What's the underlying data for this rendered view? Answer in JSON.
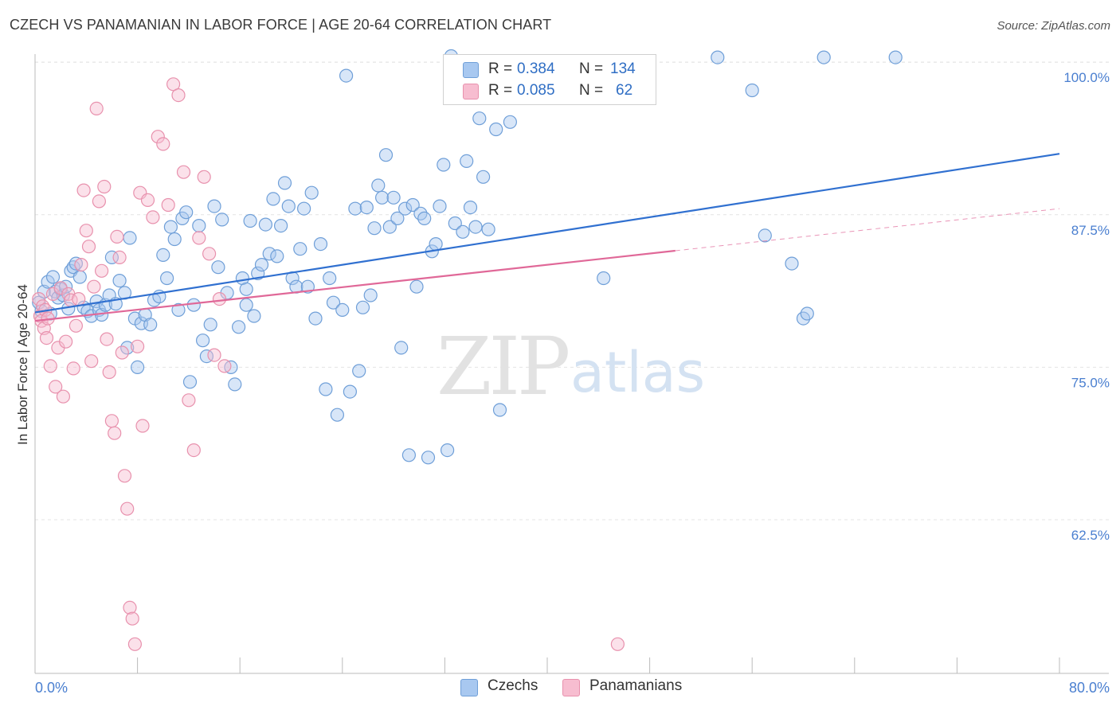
{
  "title": "CZECH VS PANAMANIAN IN LABOR FORCE | AGE 20-64 CORRELATION CHART",
  "source": "Source: ZipAtlas.com",
  "watermark": {
    "zip": "ZIP",
    "atlas": "atlas"
  },
  "legend": {
    "items": [
      {
        "r_label": "R =",
        "r_value": "0.384",
        "n_label": "N =",
        "n_value": "134",
        "color": "#a8c8f0",
        "stroke": "#6f9fd8"
      },
      {
        "r_label": "R =",
        "r_value": "0.085",
        "n_label": "N =",
        "n_value": "62",
        "color": "#f7bdd0",
        "stroke": "#e891ad"
      }
    ]
  },
  "bottom_legend": [
    {
      "label": "Czechs",
      "color": "#a8c8f0",
      "stroke": "#6f9fd8"
    },
    {
      "label": "Panamanians",
      "color": "#f7bdd0",
      "stroke": "#e891ad"
    }
  ],
  "chart_data": {
    "type": "scatter",
    "title": "CZECH VS PANAMANIAN IN LABOR FORCE | AGE 20-64 CORRELATION CHART",
    "xlabel": "",
    "ylabel": "In Labor Force | Age 20-64",
    "xlim": [
      0,
      80
    ],
    "ylim": [
      50.5,
      101
    ],
    "x_tick_labels": [
      "0.0%",
      "80.0%"
    ],
    "y_ticks": [
      62.5,
      75.0,
      87.5,
      100.0
    ],
    "y_tick_labels": [
      "62.5%",
      "75.0%",
      "87.5%",
      "100.0%"
    ],
    "grid": true,
    "colors": {
      "czechs": "#3070d0",
      "panamanians": "#e06898",
      "tick_label": "#4a7fd0"
    },
    "series": [
      {
        "name": "Czechs",
        "points": [
          [
            0.3,
            80.3
          ],
          [
            0.5,
            79.6
          ],
          [
            0.7,
            81.2
          ],
          [
            1.0,
            82.0
          ],
          [
            1.2,
            79.4
          ],
          [
            1.4,
            82.4
          ],
          [
            1.6,
            81.2
          ],
          [
            1.8,
            80.7
          ],
          [
            2.0,
            81.4
          ],
          [
            2.2,
            80.9
          ],
          [
            2.4,
            81.6
          ],
          [
            2.6,
            79.8
          ],
          [
            2.8,
            82.9
          ],
          [
            3.0,
            83.2
          ],
          [
            3.2,
            83.5
          ],
          [
            3.5,
            82.4
          ],
          [
            3.8,
            79.9
          ],
          [
            4.1,
            79.6
          ],
          [
            4.4,
            79.2
          ],
          [
            4.8,
            80.4
          ],
          [
            5.0,
            79.7
          ],
          [
            5.2,
            79.3
          ],
          [
            5.5,
            80.1
          ],
          [
            5.8,
            80.9
          ],
          [
            6.0,
            84.0
          ],
          [
            6.3,
            80.2
          ],
          [
            6.6,
            82.1
          ],
          [
            7.0,
            81.1
          ],
          [
            7.2,
            76.6
          ],
          [
            7.4,
            85.6
          ],
          [
            7.8,
            79.0
          ],
          [
            8.0,
            75.0
          ],
          [
            8.3,
            78.6
          ],
          [
            8.6,
            79.3
          ],
          [
            9.0,
            78.5
          ],
          [
            9.3,
            80.5
          ],
          [
            9.7,
            80.8
          ],
          [
            10.0,
            84.2
          ],
          [
            10.3,
            82.3
          ],
          [
            10.6,
            86.5
          ],
          [
            10.9,
            85.5
          ],
          [
            11.2,
            79.7
          ],
          [
            11.5,
            87.2
          ],
          [
            11.8,
            87.7
          ],
          [
            12.1,
            73.8
          ],
          [
            12.4,
            80.1
          ],
          [
            12.8,
            86.6
          ],
          [
            13.1,
            77.2
          ],
          [
            13.4,
            75.9
          ],
          [
            13.7,
            78.5
          ],
          [
            14.0,
            88.2
          ],
          [
            14.3,
            83.2
          ],
          [
            14.6,
            87.1
          ],
          [
            15.0,
            81.1
          ],
          [
            15.3,
            75.0
          ],
          [
            15.6,
            73.6
          ],
          [
            15.9,
            78.3
          ],
          [
            16.2,
            82.3
          ],
          [
            16.5,
            80.1
          ],
          [
            16.8,
            87.0
          ],
          [
            17.1,
            79.2
          ],
          [
            17.4,
            82.7
          ],
          [
            17.7,
            83.4
          ],
          [
            18.0,
            86.7
          ],
          [
            18.3,
            84.3
          ],
          [
            18.6,
            88.8
          ],
          [
            18.9,
            84.1
          ],
          [
            19.2,
            86.6
          ],
          [
            19.5,
            90.1
          ],
          [
            19.8,
            88.2
          ],
          [
            20.1,
            82.3
          ],
          [
            20.4,
            81.6
          ],
          [
            20.7,
            84.7
          ],
          [
            21.0,
            88.0
          ],
          [
            21.3,
            81.6
          ],
          [
            21.6,
            89.3
          ],
          [
            21.9,
            79.0
          ],
          [
            22.3,
            85.1
          ],
          [
            22.7,
            73.2
          ],
          [
            23.0,
            82.3
          ],
          [
            23.3,
            80.3
          ],
          [
            23.6,
            71.1
          ],
          [
            24.0,
            79.7
          ],
          [
            24.3,
            98.9
          ],
          [
            24.6,
            73.0
          ],
          [
            25.0,
            88.0
          ],
          [
            25.3,
            74.7
          ],
          [
            25.6,
            79.9
          ],
          [
            25.9,
            88.1
          ],
          [
            26.2,
            80.9
          ],
          [
            26.5,
            86.4
          ],
          [
            26.8,
            89.9
          ],
          [
            27.1,
            88.9
          ],
          [
            27.4,
            92.4
          ],
          [
            27.7,
            86.5
          ],
          [
            28.0,
            88.9
          ],
          [
            28.3,
            87.2
          ],
          [
            28.6,
            76.6
          ],
          [
            28.9,
            88.0
          ],
          [
            29.2,
            67.8
          ],
          [
            29.5,
            88.3
          ],
          [
            29.8,
            81.6
          ],
          [
            30.1,
            87.6
          ],
          [
            30.4,
            87.2
          ],
          [
            30.7,
            67.6
          ],
          [
            31.0,
            84.5
          ],
          [
            31.3,
            85.1
          ],
          [
            31.6,
            88.2
          ],
          [
            31.9,
            91.6
          ],
          [
            32.2,
            68.2
          ],
          [
            32.5,
            100.5
          ],
          [
            32.8,
            86.8
          ],
          [
            33.1,
            98.5
          ],
          [
            33.4,
            86.1
          ],
          [
            33.7,
            91.9
          ],
          [
            34.0,
            88.1
          ],
          [
            34.4,
            86.5
          ],
          [
            34.7,
            95.4
          ],
          [
            35.0,
            90.6
          ],
          [
            35.4,
            86.3
          ],
          [
            35.7,
            97.5
          ],
          [
            36.0,
            94.5
          ],
          [
            36.3,
            71.5
          ],
          [
            37.1,
            95.1
          ],
          [
            44.4,
            82.3
          ],
          [
            53.3,
            100.4
          ],
          [
            56.0,
            97.7
          ],
          [
            57.0,
            85.8
          ],
          [
            59.1,
            83.5
          ],
          [
            60.0,
            79.0
          ],
          [
            60.3,
            79.4
          ],
          [
            61.6,
            100.4
          ],
          [
            67.2,
            100.4
          ],
          [
            16.5,
            81.4
          ]
        ]
      },
      {
        "name": "Panamanians",
        "points": [
          [
            0.3,
            80.6
          ],
          [
            0.4,
            79.2
          ],
          [
            0.5,
            78.8
          ],
          [
            0.6,
            80.0
          ],
          [
            0.7,
            78.2
          ],
          [
            0.8,
            79.7
          ],
          [
            0.9,
            77.4
          ],
          [
            1.0,
            79.0
          ],
          [
            1.2,
            75.1
          ],
          [
            1.4,
            81.0
          ],
          [
            1.6,
            73.4
          ],
          [
            1.8,
            76.6
          ],
          [
            2.0,
            81.5
          ],
          [
            2.2,
            72.6
          ],
          [
            2.4,
            77.1
          ],
          [
            2.6,
            81.0
          ],
          [
            2.8,
            80.5
          ],
          [
            3.0,
            74.9
          ],
          [
            3.2,
            78.4
          ],
          [
            3.4,
            80.6
          ],
          [
            3.6,
            83.4
          ],
          [
            3.8,
            89.5
          ],
          [
            4.0,
            86.2
          ],
          [
            4.2,
            84.9
          ],
          [
            4.4,
            75.5
          ],
          [
            4.6,
            81.6
          ],
          [
            4.8,
            96.2
          ],
          [
            5.0,
            88.6
          ],
          [
            5.2,
            82.9
          ],
          [
            5.4,
            89.8
          ],
          [
            5.6,
            77.3
          ],
          [
            5.8,
            74.6
          ],
          [
            6.0,
            70.6
          ],
          [
            6.2,
            69.6
          ],
          [
            6.4,
            85.7
          ],
          [
            6.6,
            84.0
          ],
          [
            6.8,
            76.2
          ],
          [
            7.0,
            66.1
          ],
          [
            7.2,
            63.4
          ],
          [
            7.4,
            55.3
          ],
          [
            7.6,
            54.4
          ],
          [
            7.8,
            52.3
          ],
          [
            8.0,
            76.7
          ],
          [
            8.2,
            89.3
          ],
          [
            8.4,
            70.2
          ],
          [
            8.8,
            88.7
          ],
          [
            9.2,
            87.3
          ],
          [
            9.6,
            93.9
          ],
          [
            10.0,
            93.3
          ],
          [
            10.4,
            88.3
          ],
          [
            10.8,
            98.2
          ],
          [
            11.2,
            97.3
          ],
          [
            11.6,
            91.0
          ],
          [
            12.0,
            72.3
          ],
          [
            12.4,
            68.2
          ],
          [
            12.8,
            85.6
          ],
          [
            13.2,
            90.6
          ],
          [
            13.6,
            84.3
          ],
          [
            14.0,
            76.0
          ],
          [
            14.4,
            80.6
          ],
          [
            14.8,
            75.1
          ],
          [
            45.5,
            52.3
          ]
        ]
      }
    ],
    "trend_lines": [
      {
        "series": "Czechs",
        "x": [
          0,
          80
        ],
        "y": [
          79.5,
          92.5
        ],
        "dashed_beyond": null
      },
      {
        "series": "Panamanians",
        "x": [
          0,
          80
        ],
        "y": [
          78.8,
          88.0
        ],
        "solid_until": 50
      }
    ]
  },
  "axis_labels": {
    "x_left": "0.0%",
    "x_right": "80.0%"
  }
}
